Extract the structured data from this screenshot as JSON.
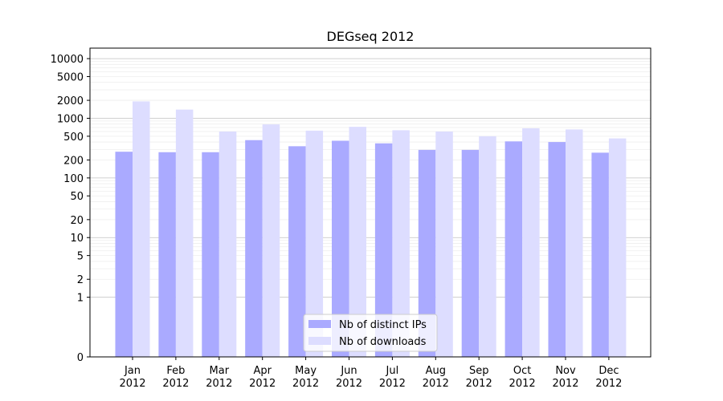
{
  "chart_data": {
    "type": "bar",
    "title": "DEGseq 2012",
    "xlabel": "",
    "ylabel": "",
    "y_scale": "symlog",
    "ylim": [
      0,
      15000
    ],
    "y_ticks": [
      0,
      1,
      2,
      5,
      10,
      20,
      50,
      100,
      200,
      500,
      1000,
      2000,
      5000,
      10000
    ],
    "categories": [
      {
        "month": "Jan",
        "year": "2012"
      },
      {
        "month": "Feb",
        "year": "2012"
      },
      {
        "month": "Mar",
        "year": "2012"
      },
      {
        "month": "Apr",
        "year": "2012"
      },
      {
        "month": "May",
        "year": "2012"
      },
      {
        "month": "Jun",
        "year": "2012"
      },
      {
        "month": "Jul",
        "year": "2012"
      },
      {
        "month": "Aug",
        "year": "2012"
      },
      {
        "month": "Sep",
        "year": "2012"
      },
      {
        "month": "Oct",
        "year": "2012"
      },
      {
        "month": "Nov",
        "year": "2012"
      },
      {
        "month": "Dec",
        "year": "2012"
      }
    ],
    "series": [
      {
        "name": "Nb of distinct IPs",
        "color": "#aaaaff",
        "values": [
          275,
          270,
          270,
          430,
          340,
          420,
          380,
          295,
          295,
          410,
          400,
          265
        ]
      },
      {
        "name": "Nb of downloads",
        "color": "#ddddff",
        "values": [
          1920,
          1400,
          600,
          790,
          620,
          720,
          630,
          600,
          500,
          680,
          650,
          460
        ]
      }
    ],
    "legend_position": "lower-center",
    "grid": "horizontal major and minor lines"
  }
}
